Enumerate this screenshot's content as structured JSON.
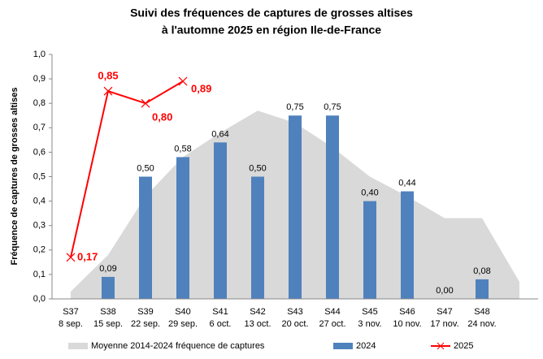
{
  "chart_data": {
    "type": "bar",
    "title": [
      "Suivi des fréquences de captures de grosses altises",
      "à l'automne 2025 en région Ile-de-France"
    ],
    "y_label": "Fréquence de captures de grosses altises",
    "categories": [
      [
        "S37",
        "8 sep."
      ],
      [
        "S38",
        "15 sep."
      ],
      [
        "S39",
        "22 sep."
      ],
      [
        "S40",
        "29 sep."
      ],
      [
        "S41",
        "6 oct."
      ],
      [
        "S42",
        "13 oct."
      ],
      [
        "S43",
        "20 oct."
      ],
      [
        "S44",
        "27 oct."
      ],
      [
        "S45",
        "3 nov."
      ],
      [
        "S46",
        "10 nov."
      ],
      [
        "S47",
        "17 nov."
      ],
      [
        "S48",
        "24 nov."
      ],
      null
    ],
    "series": [
      {
        "name": "Moyenne 2014-2024 fréquence de captures",
        "type": "area",
        "color": "#d9d9d9",
        "values": [
          0.03,
          0.18,
          0.42,
          0.58,
          0.68,
          0.77,
          0.72,
          0.62,
          0.5,
          0.42,
          0.33,
          0.33,
          0.07
        ]
      },
      {
        "name": "2024",
        "type": "bar",
        "color": "#4f81bd",
        "values": [
          null,
          0.09,
          0.5,
          0.58,
          0.64,
          0.5,
          0.75,
          0.75,
          0.4,
          0.44,
          0,
          0.08,
          null
        ],
        "value_labels": [
          null,
          "0,09",
          "0,50",
          "0,58",
          "0,64",
          "0,50",
          "0,75",
          "0,75",
          "0,40",
          "0,44",
          "0,00",
          "0,08",
          null
        ]
      },
      {
        "name": "2025",
        "type": "line",
        "color": "#ff0000",
        "values": [
          0.17,
          0.85,
          0.8,
          0.89,
          null,
          null,
          null,
          null,
          null,
          null,
          null,
          null,
          null
        ],
        "value_labels": [
          "0,17",
          "0,85",
          "0,80",
          "0,89",
          null,
          null,
          null,
          null,
          null,
          null,
          null,
          null,
          null
        ]
      }
    ],
    "ylim": [
      0,
      1
    ],
    "yticks": [
      {
        "value": 0,
        "label": "0,0"
      },
      {
        "value": 0.1,
        "label": "0,1"
      },
      {
        "value": 0.2,
        "label": "0,2"
      },
      {
        "value": 0.3,
        "label": "0,3"
      },
      {
        "value": 0.4,
        "label": "0,4"
      },
      {
        "value": 0.5,
        "label": "0,5"
      },
      {
        "value": 0.6,
        "label": "0,6"
      },
      {
        "value": 0.7,
        "label": "0,7"
      },
      {
        "value": 0.8,
        "label": "0,8"
      },
      {
        "value": 0.9,
        "label": "0,9"
      },
      {
        "value": 1,
        "label": "1,0"
      }
    ],
    "legend": "bottom"
  }
}
